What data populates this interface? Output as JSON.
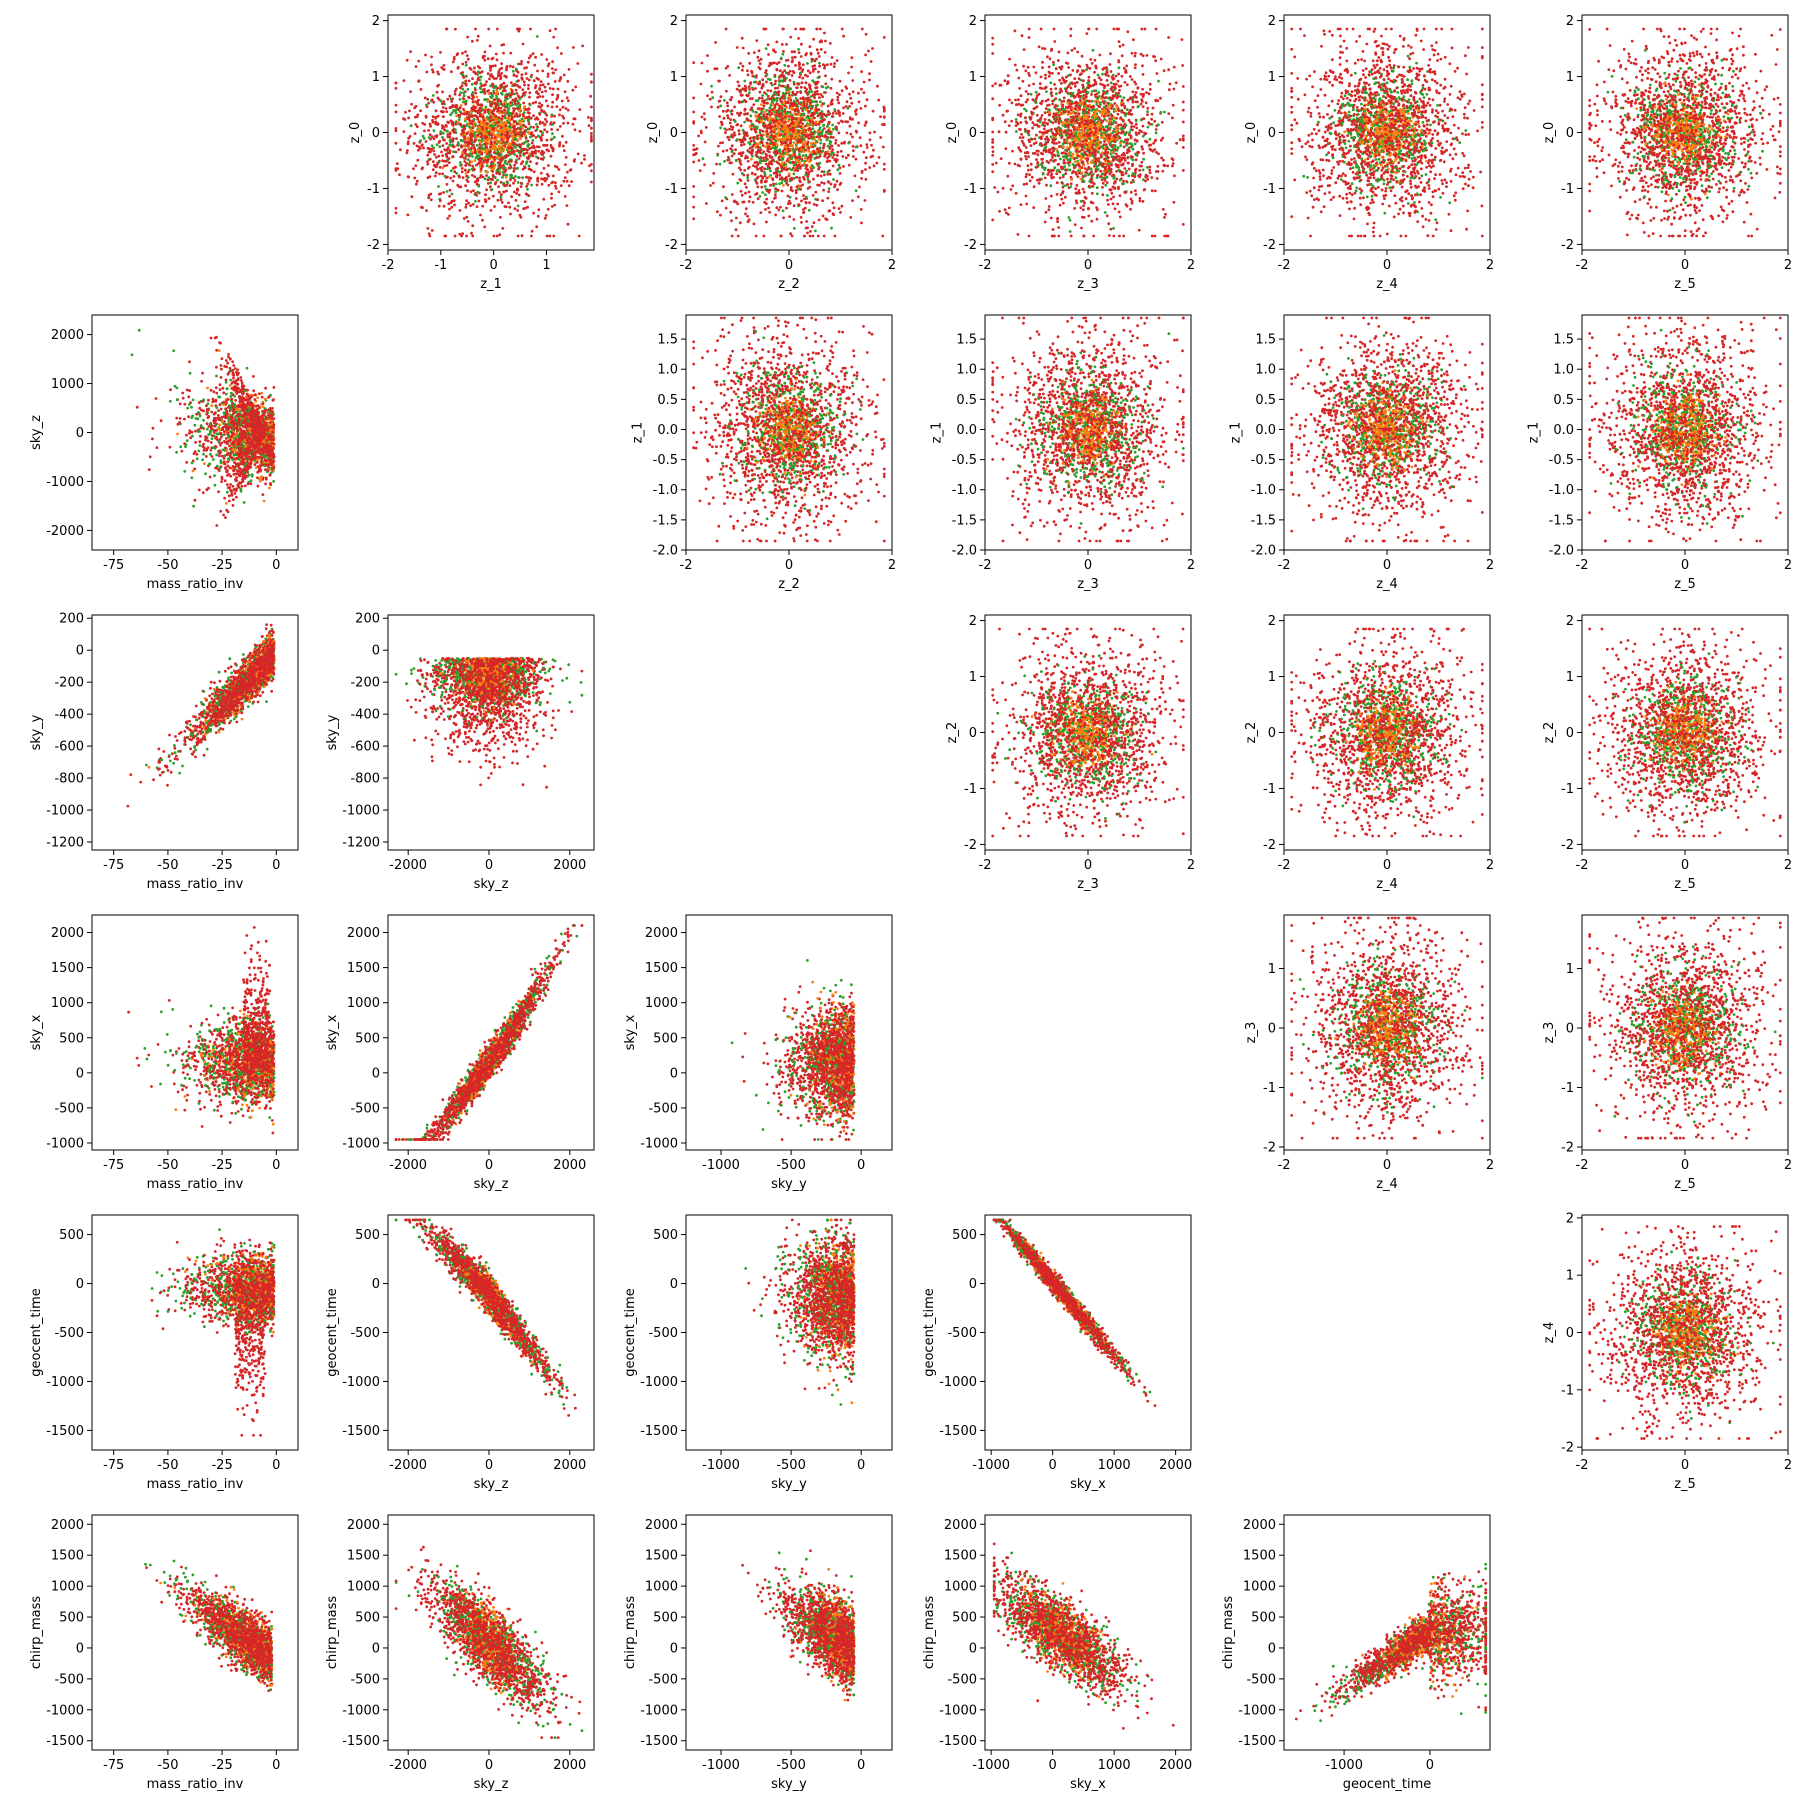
{
  "palette": {
    "outer": "#d62728",
    "middle": "#2ca02c",
    "inner": "#ff7f0e"
  },
  "chart_data": [
    {
      "row": 0,
      "col": 1,
      "type": "scatter",
      "xlabel": "z_1",
      "ylabel": "z_0",
      "xlim": [
        -2.0,
        1.9
      ],
      "ylim": [
        -2.1,
        2.1
      ],
      "xticks": [
        "-2",
        "-1",
        "0",
        "1"
      ],
      "yticks": [
        "-2",
        "-1",
        "0",
        "1",
        "2"
      ],
      "shape": "blob"
    },
    {
      "row": 0,
      "col": 2,
      "type": "scatter",
      "xlabel": "z_2",
      "ylabel": "z_0",
      "xlim": [
        -2.0,
        2.0
      ],
      "ylim": [
        -2.1,
        2.1
      ],
      "xticks": [
        "-2",
        "0",
        "2"
      ],
      "yticks": [
        "-2",
        "-1",
        "0",
        "1",
        "2"
      ],
      "shape": "blob"
    },
    {
      "row": 0,
      "col": 3,
      "type": "scatter",
      "xlabel": "z_3",
      "ylabel": "z_0",
      "xlim": [
        -2.0,
        2.0
      ],
      "ylim": [
        -2.1,
        2.1
      ],
      "xticks": [
        "-2",
        "0",
        "2"
      ],
      "yticks": [
        "-2",
        "-1",
        "0",
        "1",
        "2"
      ],
      "shape": "blob"
    },
    {
      "row": 0,
      "col": 4,
      "type": "scatter",
      "xlabel": "z_4",
      "ylabel": "z_0",
      "xlim": [
        -2.0,
        2.0
      ],
      "ylim": [
        -2.1,
        2.1
      ],
      "xticks": [
        "-2",
        "0",
        "2"
      ],
      "yticks": [
        "-2",
        "-1",
        "0",
        "1",
        "2"
      ],
      "shape": "blob"
    },
    {
      "row": 0,
      "col": 5,
      "type": "scatter",
      "xlabel": "z_5",
      "ylabel": "z_0",
      "xlim": [
        -2.0,
        2.0
      ],
      "ylim": [
        -2.1,
        2.1
      ],
      "xticks": [
        "-2",
        "0",
        "2"
      ],
      "yticks": [
        "-2",
        "-1",
        "0",
        "1",
        "2"
      ],
      "shape": "blob"
    },
    {
      "row": 1,
      "col": 0,
      "type": "scatter",
      "xlabel": "mass_ratio_inv",
      "ylabel": "sky_z",
      "xlim": [
        -85,
        10
      ],
      "ylim": [
        -2400,
        2400
      ],
      "xticks": [
        "-75",
        "-50",
        "-25",
        "0"
      ],
      "yticks": [
        "-2000",
        "-1000",
        "0",
        "1000",
        "2000"
      ],
      "shape": "massratio_skyz"
    },
    {
      "row": 1,
      "col": 2,
      "type": "scatter",
      "xlabel": "z_2",
      "ylabel": "z_1",
      "xlim": [
        -2.0,
        2.0
      ],
      "ylim": [
        -2.0,
        1.9
      ],
      "xticks": [
        "-2",
        "0",
        "2"
      ],
      "yticks": [
        "-2.0",
        "-1.5",
        "-1.0",
        "-0.5",
        "0.0",
        "0.5",
        "1.0",
        "1.5"
      ],
      "shape": "blob"
    },
    {
      "row": 1,
      "col": 3,
      "type": "scatter",
      "xlabel": "z_3",
      "ylabel": "z_1",
      "xlim": [
        -2.0,
        2.0
      ],
      "ylim": [
        -2.0,
        1.9
      ],
      "xticks": [
        "-2",
        "0",
        "2"
      ],
      "yticks": [
        "-2.0",
        "-1.5",
        "-1.0",
        "-0.5",
        "0.0",
        "0.5",
        "1.0",
        "1.5"
      ],
      "shape": "blob"
    },
    {
      "row": 1,
      "col": 4,
      "type": "scatter",
      "xlabel": "z_4",
      "ylabel": "z_1",
      "xlim": [
        -2.0,
        2.0
      ],
      "ylim": [
        -2.0,
        1.9
      ],
      "xticks": [
        "-2",
        "0",
        "2"
      ],
      "yticks": [
        "-2.0",
        "-1.5",
        "-1.0",
        "-0.5",
        "0.0",
        "0.5",
        "1.0",
        "1.5"
      ],
      "shape": "blob"
    },
    {
      "row": 1,
      "col": 5,
      "type": "scatter",
      "xlabel": "z_5",
      "ylabel": "z_1",
      "xlim": [
        -2.0,
        2.0
      ],
      "ylim": [
        -2.0,
        1.9
      ],
      "xticks": [
        "-2",
        "0",
        "2"
      ],
      "yticks": [
        "-2.0",
        "-1.5",
        "-1.0",
        "-0.5",
        "0.0",
        "0.5",
        "1.0",
        "1.5"
      ],
      "shape": "blob"
    },
    {
      "row": 2,
      "col": 0,
      "type": "scatter",
      "xlabel": "mass_ratio_inv",
      "ylabel": "sky_y",
      "xlim": [
        -85,
        10
      ],
      "ylim": [
        -1250,
        220
      ],
      "xticks": [
        "-75",
        "-50",
        "-25",
        "0"
      ],
      "yticks": [
        "-1200",
        "-1000",
        "-800",
        "-600",
        "-400",
        "-200",
        "0",
        "200"
      ],
      "shape": "massratio_skyy"
    },
    {
      "row": 2,
      "col": 1,
      "type": "scatter",
      "xlabel": "sky_z",
      "ylabel": "sky_y",
      "xlim": [
        -2500,
        2600
      ],
      "ylim": [
        -1250,
        220
      ],
      "xticks": [
        "-2000",
        "0",
        "2000"
      ],
      "yticks": [
        "-1200",
        "-1000",
        "-800",
        "-600",
        "-400",
        "-200",
        "0",
        "200"
      ],
      "shape": "skyz_skyy"
    },
    {
      "row": 2,
      "col": 3,
      "type": "scatter",
      "xlabel": "z_3",
      "ylabel": "z_2",
      "xlim": [
        -2.0,
        2.0
      ],
      "ylim": [
        -2.1,
        2.1
      ],
      "xticks": [
        "-2",
        "0",
        "2"
      ],
      "yticks": [
        "-2",
        "-1",
        "0",
        "1",
        "2"
      ],
      "shape": "blob"
    },
    {
      "row": 2,
      "col": 4,
      "type": "scatter",
      "xlabel": "z_4",
      "ylabel": "z_2",
      "xlim": [
        -2.0,
        2.0
      ],
      "ylim": [
        -2.1,
        2.1
      ],
      "xticks": [
        "-2",
        "0",
        "2"
      ],
      "yticks": [
        "-2",
        "-1",
        "0",
        "1",
        "2"
      ],
      "shape": "blob"
    },
    {
      "row": 2,
      "col": 5,
      "type": "scatter",
      "xlabel": "z_5",
      "ylabel": "z_2",
      "xlim": [
        -2.0,
        2.0
      ],
      "ylim": [
        -2.1,
        2.1
      ],
      "xticks": [
        "-2",
        "0",
        "2"
      ],
      "yticks": [
        "-2",
        "-1",
        "0",
        "1",
        "2"
      ],
      "shape": "blob"
    },
    {
      "row": 3,
      "col": 0,
      "type": "scatter",
      "xlabel": "mass_ratio_inv",
      "ylabel": "sky_x",
      "xlim": [
        -85,
        10
      ],
      "ylim": [
        -1100,
        2250
      ],
      "xticks": [
        "-75",
        "-50",
        "-25",
        "0"
      ],
      "yticks": [
        "-1000",
        "-500",
        "0",
        "500",
        "1000",
        "1500",
        "2000"
      ],
      "shape": "massratio_skyx"
    },
    {
      "row": 3,
      "col": 1,
      "type": "scatter",
      "xlabel": "sky_z",
      "ylabel": "sky_x",
      "xlim": [
        -2500,
        2600
      ],
      "ylim": [
        -1100,
        2250
      ],
      "xticks": [
        "-2000",
        "0",
        "2000"
      ],
      "yticks": [
        "-1000",
        "-500",
        "0",
        "500",
        "1000",
        "1500",
        "2000"
      ],
      "shape": "skyz_skyx"
    },
    {
      "row": 3,
      "col": 2,
      "type": "scatter",
      "xlabel": "sky_y",
      "ylabel": "sky_x",
      "xlim": [
        -1250,
        220
      ],
      "ylim": [
        -1100,
        2250
      ],
      "xticks": [
        "-1000",
        "-500",
        "0"
      ],
      "yticks": [
        "-1000",
        "-500",
        "0",
        "500",
        "1000",
        "1500",
        "2000"
      ],
      "shape": "skyy_skyx"
    },
    {
      "row": 3,
      "col": 4,
      "type": "scatter",
      "xlabel": "z_4",
      "ylabel": "z_3",
      "xlim": [
        -2.0,
        2.0
      ],
      "ylim": [
        -2.05,
        1.9
      ],
      "xticks": [
        "-2",
        "0",
        "2"
      ],
      "yticks": [
        "-2",
        "-1",
        "0",
        "1"
      ],
      "shape": "blob"
    },
    {
      "row": 3,
      "col": 5,
      "type": "scatter",
      "xlabel": "z_5",
      "ylabel": "z_3",
      "xlim": [
        -2.0,
        2.0
      ],
      "ylim": [
        -2.05,
        1.9
      ],
      "xticks": [
        "-2",
        "0",
        "2"
      ],
      "yticks": [
        "-2",
        "-1",
        "0",
        "1"
      ],
      "shape": "blob"
    },
    {
      "row": 4,
      "col": 0,
      "type": "scatter",
      "xlabel": "mass_ratio_inv",
      "ylabel": "geocent_time",
      "xlim": [
        -85,
        10
      ],
      "ylim": [
        -1700,
        700
      ],
      "xticks": [
        "-75",
        "-50",
        "-25",
        "0"
      ],
      "yticks": [
        "-1500",
        "-1000",
        "-500",
        "0",
        "500"
      ],
      "shape": "massratio_geo"
    },
    {
      "row": 4,
      "col": 1,
      "type": "scatter",
      "xlabel": "sky_z",
      "ylabel": "geocent_time",
      "xlim": [
        -2500,
        2600
      ],
      "ylim": [
        -1700,
        700
      ],
      "xticks": [
        "-2000",
        "0",
        "2000"
      ],
      "yticks": [
        "-1500",
        "-1000",
        "-500",
        "0",
        "500"
      ],
      "shape": "skyz_geo"
    },
    {
      "row": 4,
      "col": 2,
      "type": "scatter",
      "xlabel": "sky_y",
      "ylabel": "geocent_time",
      "xlim": [
        -1250,
        220
      ],
      "ylim": [
        -1700,
        700
      ],
      "xticks": [
        "-1000",
        "-500",
        "0"
      ],
      "yticks": [
        "-1500",
        "-1000",
        "-500",
        "0",
        "500"
      ],
      "shape": "skyy_geo"
    },
    {
      "row": 4,
      "col": 3,
      "type": "scatter",
      "xlabel": "sky_x",
      "ylabel": "geocent_time",
      "xlim": [
        -1100,
        2250
      ],
      "ylim": [
        -1700,
        700
      ],
      "xticks": [
        "-1000",
        "0",
        "1000",
        "2000"
      ],
      "yticks": [
        "-1500",
        "-1000",
        "-500",
        "0",
        "500"
      ],
      "shape": "skyx_geo"
    },
    {
      "row": 4,
      "col": 5,
      "type": "scatter",
      "xlabel": "z_5",
      "ylabel": "z_4",
      "xlim": [
        -2.0,
        2.0
      ],
      "ylim": [
        -2.05,
        2.05
      ],
      "xticks": [
        "-2",
        "0",
        "2"
      ],
      "yticks": [
        "-2",
        "-1",
        "0",
        "1",
        "2"
      ],
      "shape": "blob"
    },
    {
      "row": 5,
      "col": 0,
      "type": "scatter",
      "xlabel": "mass_ratio_inv",
      "ylabel": "chirp_mass",
      "xlim": [
        -85,
        10
      ],
      "ylim": [
        -1650,
        2150
      ],
      "xticks": [
        "-75",
        "-50",
        "-25",
        "0"
      ],
      "yticks": [
        "-1500",
        "-1000",
        "-500",
        "0",
        "500",
        "1000",
        "1500",
        "2000"
      ],
      "shape": "massratio_chirp"
    },
    {
      "row": 5,
      "col": 1,
      "type": "scatter",
      "xlabel": "sky_z",
      "ylabel": "chirp_mass",
      "xlim": [
        -2500,
        2600
      ],
      "ylim": [
        -1650,
        2150
      ],
      "xticks": [
        "-2000",
        "0",
        "2000"
      ],
      "yticks": [
        "-1500",
        "-1000",
        "-500",
        "0",
        "500",
        "1000",
        "1500",
        "2000"
      ],
      "shape": "skyz_chirp"
    },
    {
      "row": 5,
      "col": 2,
      "type": "scatter",
      "xlabel": "sky_y",
      "ylabel": "chirp_mass",
      "xlim": [
        -1250,
        220
      ],
      "ylim": [
        -1650,
        2150
      ],
      "xticks": [
        "-1000",
        "-500",
        "0"
      ],
      "yticks": [
        "-1500",
        "-1000",
        "-500",
        "0",
        "500",
        "1000",
        "1500",
        "2000"
      ],
      "shape": "skyy_chirp"
    },
    {
      "row": 5,
      "col": 3,
      "type": "scatter",
      "xlabel": "sky_x",
      "ylabel": "chirp_mass",
      "xlim": [
        -1100,
        2250
      ],
      "ylim": [
        -1650,
        2150
      ],
      "xticks": [
        "-1000",
        "0",
        "1000",
        "2000"
      ],
      "yticks": [
        "-1500",
        "-1000",
        "-500",
        "0",
        "500",
        "1000",
        "1500",
        "2000"
      ],
      "shape": "skyx_chirp"
    },
    {
      "row": 5,
      "col": 4,
      "type": "scatter",
      "xlabel": "geocent_time",
      "ylabel": "chirp_mass",
      "xlim": [
        -1700,
        700
      ],
      "ylim": [
        -1650,
        2150
      ],
      "xticks": [
        "-1000",
        "0"
      ],
      "yticks": [
        "-1500",
        "-1000",
        "-500",
        "0",
        "500",
        "1000",
        "1500",
        "2000"
      ],
      "shape": "geo_chirp"
    }
  ]
}
